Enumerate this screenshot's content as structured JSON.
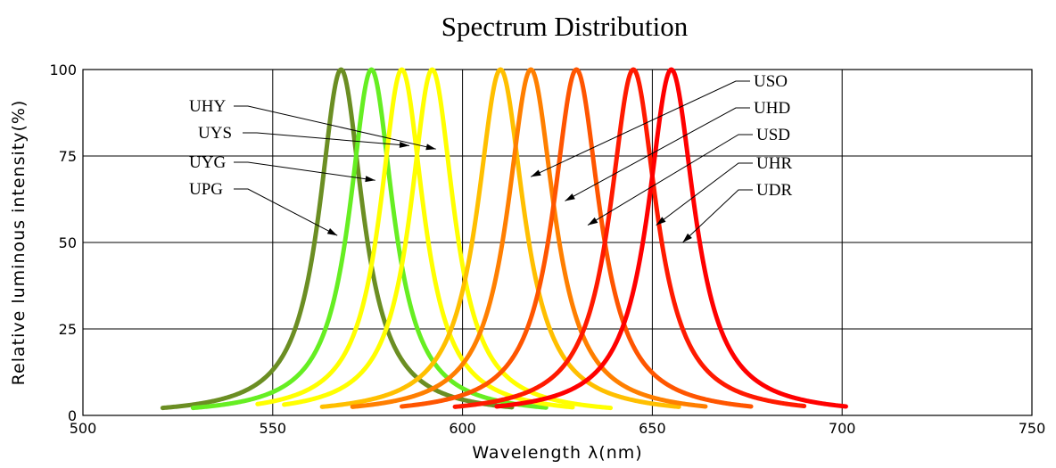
{
  "chart_data": {
    "type": "line",
    "title": "Spectrum Distribution",
    "xlabel": "Wavelength  λ(nm)",
    "ylabel": "Relative  luminous  intensity(%)",
    "xlim": [
      500,
      750
    ],
    "ylim": [
      0,
      100
    ],
    "xticks": [
      500,
      550,
      600,
      650,
      700,
      750
    ],
    "yticks": [
      0,
      25,
      50,
      75,
      100
    ],
    "grid": true,
    "series": [
      {
        "name": "UPG",
        "peak": 568,
        "half_width": 14,
        "x_range": [
          521,
          613
        ],
        "color": "#6b8e23"
      },
      {
        "name": "UYG",
        "peak": 576,
        "half_width": 14,
        "x_range": [
          529,
          622
        ],
        "color": "#66ee22"
      },
      {
        "name": "UYS",
        "peak": 584,
        "half_width": 14,
        "x_range": [
          546,
          629
        ],
        "color": "#ffff00"
      },
      {
        "name": "UHY",
        "peak": 592,
        "half_width": 14,
        "x_range": [
          553,
          639
        ],
        "color": "#ffff00"
      },
      {
        "name": "USO",
        "peak": 610,
        "half_width": 15,
        "x_range": [
          563,
          657
        ],
        "color": "#ffbf00"
      },
      {
        "name": "UHD",
        "peak": 618,
        "half_width": 15,
        "x_range": [
          571,
          664
        ],
        "color": "#ff7f00"
      },
      {
        "name": "USD",
        "peak": 630,
        "half_width": 15,
        "x_range": [
          584,
          676
        ],
        "color": "#ff5500"
      },
      {
        "name": "UHR",
        "peak": 645,
        "half_width": 15,
        "x_range": [
          598,
          690
        ],
        "color": "#ff1a00"
      },
      {
        "name": "UDR",
        "peak": 655,
        "half_width": 15,
        "x_range": [
          609,
          701
        ],
        "color": "#ff0000"
      }
    ],
    "annotations": [
      {
        "label": "UHY",
        "arrow_to": [
          593,
          77
        ]
      },
      {
        "label": "UYS",
        "arrow_to": [
          586,
          78
        ]
      },
      {
        "label": "UYG",
        "arrow_to": [
          577,
          68
        ]
      },
      {
        "label": "UPG",
        "arrow_to": [
          567,
          52
        ]
      },
      {
        "label": "USO",
        "arrow_to": [
          618,
          69
        ]
      },
      {
        "label": "UHD",
        "arrow_to": [
          627,
          62
        ]
      },
      {
        "label": "USD",
        "arrow_to": [
          633,
          55
        ]
      },
      {
        "label": "UHR",
        "arrow_to": [
          651,
          55
        ]
      },
      {
        "label": "UDR",
        "arrow_to": [
          658,
          50
        ]
      }
    ]
  }
}
